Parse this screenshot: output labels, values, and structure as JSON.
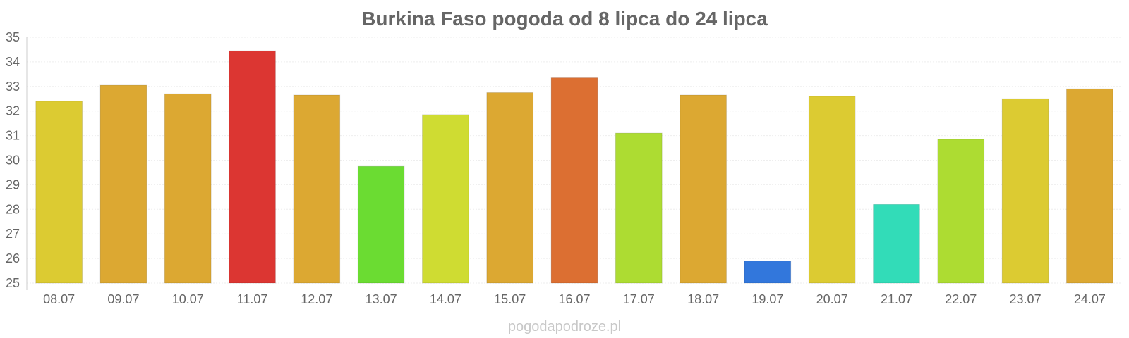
{
  "chart_data": {
    "type": "bar",
    "title": "Burkina Faso pogoda od 8 lipca do 24 lipca",
    "xlabel": "",
    "ylabel": "",
    "ylim": [
      25,
      35
    ],
    "yticks": [
      25,
      26,
      27,
      28,
      29,
      30,
      31,
      32,
      33,
      34,
      35
    ],
    "grid": true,
    "categories": [
      "08.07",
      "09.07",
      "10.07",
      "11.07",
      "12.07",
      "13.07",
      "14.07",
      "15.07",
      "16.07",
      "17.07",
      "18.07",
      "19.07",
      "20.07",
      "21.07",
      "22.07",
      "23.07",
      "24.07"
    ],
    "values": [
      32.4,
      33.05,
      32.7,
      34.45,
      32.65,
      29.75,
      31.85,
      32.75,
      33.35,
      31.1,
      32.65,
      25.9,
      32.6,
      28.2,
      30.85,
      32.5,
      32.9
    ],
    "colors": [
      "#dccb32",
      "#dca832",
      "#dca832",
      "#dc3632",
      "#dca832",
      "#6bdc32",
      "#cfdc32",
      "#dca832",
      "#dc6f32",
      "#addc32",
      "#dca832",
      "#3277dc",
      "#dccb32",
      "#32dcb8",
      "#addc32",
      "#dccb32",
      "#dca832"
    ]
  },
  "source": "pogodapodroze.pl"
}
